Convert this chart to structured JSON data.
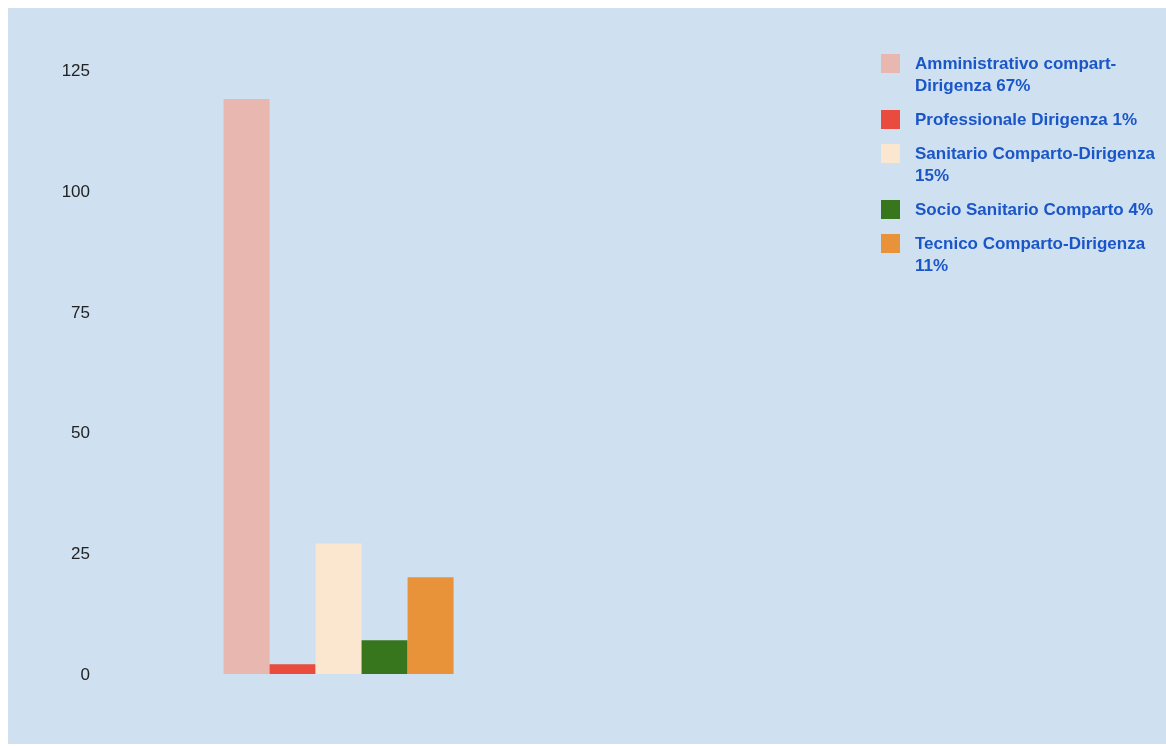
{
  "chart_data": {
    "type": "bar",
    "categories": [
      null
    ],
    "series": [
      {
        "name": "Amministrativo compart-Dirigenza  67%",
        "color": "#e8b7b0",
        "values": [
          119
        ]
      },
      {
        "name": "Professionale Dirigenza 1%",
        "color": "#e94b3c",
        "values": [
          2
        ]
      },
      {
        "name": "Sanitario Comparto-Dirigenza 15%",
        "color": "#fbe6d0",
        "values": [
          27
        ]
      },
      {
        "name": "Socio Sanitario Comparto 4%",
        "color": "#38761d",
        "values": [
          7
        ]
      },
      {
        "name": "Tecnico Comparto-Dirigenza 11%",
        "color": "#e8923a",
        "values": [
          20
        ]
      }
    ],
    "ylim": [
      0,
      125
    ],
    "yticks": [
      0,
      25,
      50,
      75,
      100,
      125
    ],
    "grid": false,
    "legend": "top right",
    "tick_labels": "y"
  }
}
